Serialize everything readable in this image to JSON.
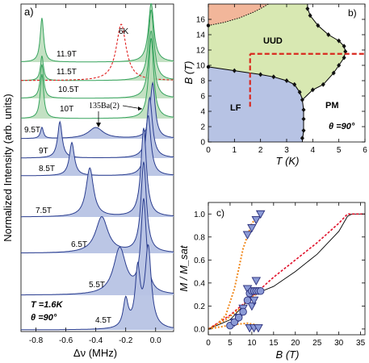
{
  "chart_data": [
    {
      "panel": "a)",
      "type": "line",
      "subtype": "stacked_nmr_spectra",
      "xlabel": "Δν (MHz)",
      "ylabel": "Normalized Intensity (arb. units)",
      "xlim": [
        -0.9,
        0.12
      ],
      "xticks": [
        "-0.8",
        "-0.6",
        "-0.4",
        "-0.2",
        "0.0"
      ],
      "xtick_values": [
        -0.8,
        -0.6,
        -0.4,
        -0.2,
        0.0
      ],
      "annotations": [
        "T =1.6K",
        "θ =90°",
        "135Ba(2)",
        "6K"
      ],
      "annotation_t": "T =1.6K",
      "annotation_theta": "θ =90°",
      "annotation_ba": "135Ba(2)",
      "colors": {
        "high_field_fill": "#b9dcb8",
        "high_field_line": "#36a35d",
        "low_field_fill": "#b7c3e4",
        "low_field_line": "#2a3d8f",
        "six_k_line": "#e02020"
      },
      "series": [
        {
          "name": "11.9T",
          "peaks": [
            [
              -0.76,
              0.75
            ],
            [
              -0.03,
              1.0
            ]
          ]
        },
        {
          "name": "11.5T",
          "peaks": [
            [
              -0.76,
              0.35
            ],
            [
              -0.03,
              1.0
            ]
          ]
        },
        {
          "name": "6K",
          "dashed": true,
          "peaks": [
            [
              -0.23,
              1.0
            ]
          ]
        },
        {
          "name": "10.5T",
          "peaks": [
            [
              -0.76,
              0.5
            ],
            [
              -0.03,
              1.0
            ]
          ]
        },
        {
          "name": "10T",
          "peaks": [
            [
              -0.76,
              0.55
            ],
            [
              -0.03,
              1.0
            ]
          ]
        },
        {
          "name": "9.5T",
          "peaks": [
            [
              -0.76,
              0.2
            ],
            [
              -0.4,
              0.2
            ],
            [
              -0.02,
              1.0
            ]
          ]
        },
        {
          "name": "9T",
          "peaks": [
            [
              -0.64,
              0.6
            ],
            [
              -0.04,
              1.0
            ]
          ]
        },
        {
          "name": "8.5T",
          "peaks": [
            [
              -0.56,
              0.55
            ],
            [
              -0.05,
              1.0
            ]
          ]
        },
        {
          "name": "7.5T",
          "peaks": [
            [
              -0.44,
              0.55
            ],
            [
              -0.08,
              1.0
            ]
          ]
        },
        {
          "name": "6.5T",
          "peaks": [
            [
              -0.36,
              0.4
            ],
            [
              -0.08,
              1.0
            ]
          ]
        },
        {
          "name": "5.5T",
          "peaks": [
            [
              -0.24,
              0.5
            ],
            [
              -0.08,
              1.0
            ]
          ]
        },
        {
          "name": "4.5T",
          "peaks": [
            [
              -0.2,
              0.35
            ],
            [
              -0.12,
              0.7
            ],
            [
              -0.05,
              1.0
            ]
          ]
        }
      ]
    },
    {
      "panel": "b)",
      "type": "scatter",
      "subtype": "phase_diagram",
      "xlabel": "T (K)",
      "ylabel": "B (T)",
      "xlim": [
        0,
        6
      ],
      "ylim": [
        0,
        18
      ],
      "xticks": [
        "0",
        "1",
        "2",
        "3",
        "4",
        "5",
        "6"
      ],
      "xtick_values": [
        0,
        1,
        2,
        3,
        4,
        5,
        6
      ],
      "yticks": [
        "0",
        "2",
        "4",
        "6",
        "8",
        "10",
        "12",
        "14",
        "16"
      ],
      "ytick_values": [
        0,
        2,
        4,
        6,
        8,
        10,
        12,
        14,
        16
      ],
      "regions": [
        "UUD",
        "LF",
        "PM"
      ],
      "region_uud": "UUD",
      "region_lf": "LF",
      "region_pm": "PM",
      "annotation_theta": "θ =90°",
      "colors": {
        "uud": "#d8e8b2",
        "lf": "#b7c3e4",
        "top": "#f2b69a",
        "cut": "#d9281e"
      },
      "boundary_points": [
        [
          3.6,
          0.5
        ],
        [
          3.65,
          1.5
        ],
        [
          3.65,
          3.0
        ],
        [
          3.65,
          4.2
        ],
        [
          3.6,
          5.5
        ],
        [
          3.5,
          6.5
        ],
        [
          3.3,
          7.5
        ],
        [
          3.0,
          8.0
        ],
        [
          2.5,
          8.5
        ],
        [
          2.0,
          8.8
        ],
        [
          1.0,
          9.3
        ],
        [
          4.0,
          6.8
        ],
        [
          4.4,
          7.5
        ],
        [
          4.8,
          9.0
        ],
        [
          5.0,
          10.0
        ],
        [
          5.2,
          11.0
        ],
        [
          5.25,
          11.8
        ],
        [
          5.2,
          12.5
        ],
        [
          5.0,
          13.2
        ],
        [
          4.6,
          14.0
        ],
        [
          4.2,
          15.2
        ],
        [
          3.9,
          16.5
        ],
        [
          3.8,
          17.4
        ]
      ],
      "cuts": [
        {
          "T": 1.6,
          "B_from": 4.6,
          "B_to": 11.5
        },
        {
          "B": 11.5,
          "T_from": 1.6,
          "T_to": 6
        }
      ]
    },
    {
      "panel": "c)",
      "type": "line",
      "subtype": "magnetization_curves",
      "xlabel": "B (T)",
      "ylabel": "M / M_sat",
      "xlim": [
        0,
        36
      ],
      "ylim": [
        -0.05,
        1.1
      ],
      "xticks": [
        "0",
        "5",
        "10",
        "15",
        "20",
        "25",
        "30",
        "35"
      ],
      "xtick_values": [
        0,
        5,
        10,
        15,
        20,
        25,
        30,
        35
      ],
      "yticks": [
        "0.0",
        "0.2",
        "0.4",
        "0.6",
        "0.8",
        "1.0"
      ],
      "ytick_values": [
        0,
        0.2,
        0.4,
        0.6,
        0.8,
        1.0
      ],
      "colors": {
        "marker_fill": "#8b9ad6",
        "marker_edge": "#2a2e7a",
        "dashed": "#e0102a",
        "dotted": "#f08a20"
      },
      "series": [
        {
          "name": "triangles",
          "values": [
            [
              6,
              0.06
            ],
            [
              7,
              0.1
            ],
            [
              8,
              0.18
            ],
            [
              9,
              0.35
            ],
            [
              10,
              0.2
            ],
            [
              10.5,
              0.25
            ],
            [
              11,
              0.42
            ],
            [
              9,
              0.82
            ],
            [
              10,
              0.88
            ],
            [
              11,
              0.95
            ],
            [
              12,
              1.0
            ],
            [
              9.5,
              0.01
            ],
            [
              10.5,
              0.01
            ],
            [
              11.5,
              0.01
            ]
          ]
        },
        {
          "name": "circles",
          "values": [
            [
              5,
              0.03
            ],
            [
              6,
              0.06
            ],
            [
              7,
              0.1
            ],
            [
              8,
              0.15
            ],
            [
              9,
              0.25
            ],
            [
              9.5,
              0.31
            ],
            [
              10,
              0.33
            ],
            [
              10.5,
              0.33
            ],
            [
              11,
              0.33
            ],
            [
              11.5,
              0.33
            ],
            [
              12,
              0.33
            ]
          ]
        },
        {
          "name": "black_solid",
          "values": [
            [
              0,
              0
            ],
            [
              5,
              0.08
            ],
            [
              8,
              0.2
            ],
            [
              10,
              0.3
            ],
            [
              11,
              0.33
            ],
            [
              13,
              0.34
            ],
            [
              15,
              0.37
            ],
            [
              20,
              0.5
            ],
            [
              25,
              0.65
            ],
            [
              30,
              0.85
            ],
            [
              32,
              0.98
            ],
            [
              33,
              1.0
            ],
            [
              36,
              1.0
            ]
          ]
        },
        {
          "name": "red_dashed",
          "values": [
            [
              0,
              0
            ],
            [
              5,
              0.12
            ],
            [
              10,
              0.28
            ],
            [
              15,
              0.45
            ],
            [
              20,
              0.6
            ],
            [
              25,
              0.75
            ],
            [
              30,
              0.92
            ],
            [
              32,
              1.0
            ],
            [
              36,
              1.0
            ]
          ]
        },
        {
          "name": "orange_dotted_up",
          "values": [
            [
              0,
              0
            ],
            [
              2,
              0.04
            ],
            [
              4,
              0.12
            ],
            [
              6,
              0.35
            ],
            [
              8,
              0.7
            ],
            [
              10,
              0.92
            ],
            [
              12,
              1.0
            ]
          ]
        },
        {
          "name": "orange_dotted_mid",
          "values": [
            [
              0,
              0
            ],
            [
              4,
              0.08
            ],
            [
              8,
              0.2
            ],
            [
              10,
              0.28
            ],
            [
              12,
              0.32
            ]
          ]
        },
        {
          "name": "orange_dotted_down",
          "values": [
            [
              0,
              0
            ],
            [
              3,
              0.02
            ],
            [
              6,
              0.04
            ],
            [
              9,
              0.05
            ],
            [
              12,
              0.03
            ]
          ]
        }
      ]
    }
  ],
  "labels": {
    "panel_a": "a)",
    "panel_b": "b)",
    "panel_c": "c)"
  }
}
